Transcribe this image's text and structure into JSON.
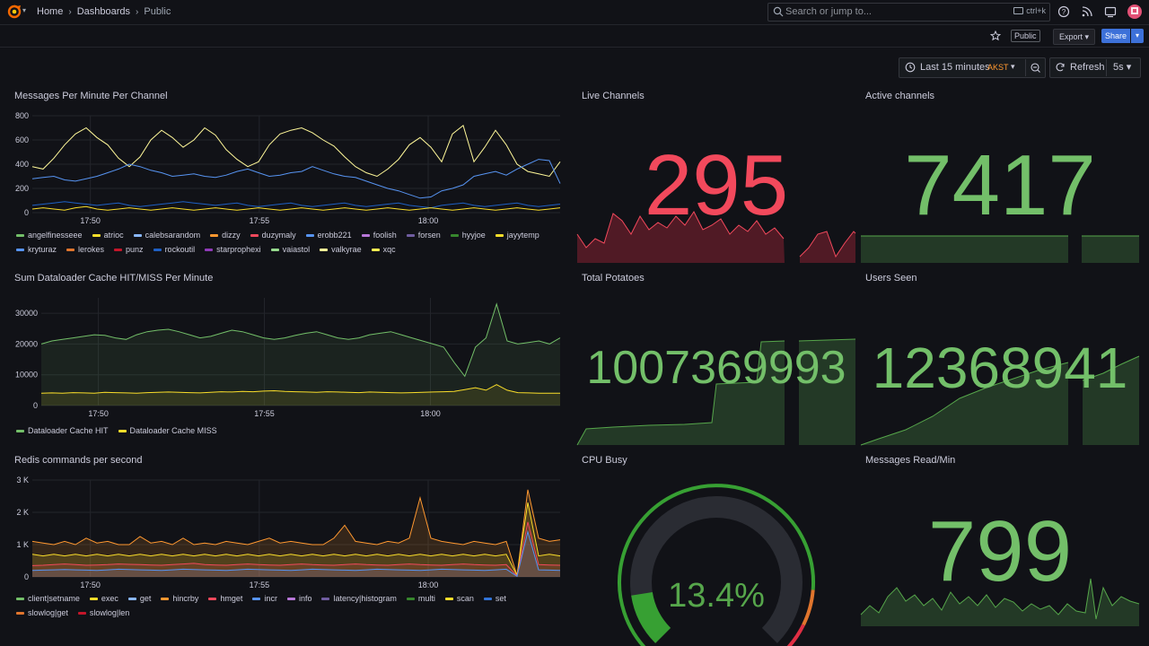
{
  "nav": {
    "breadcrumbs": [
      "Home",
      "Dashboards",
      "Public"
    ],
    "search_placeholder": "Search or jump to...",
    "search_shortcut": "ctrl+k"
  },
  "toolbar": {
    "public_label": "Public",
    "export_label": "Export",
    "share_label": "Share"
  },
  "time": {
    "range_label": "Last 15 minutes",
    "timezone": "AKST",
    "refresh_label": "Refresh",
    "interval": "5s"
  },
  "colors": {
    "green": "#56a64b",
    "red": "#f2495c",
    "yellow": "#fade2a",
    "blue": "#5794f2",
    "orange": "#ff9830",
    "share_blue": "#3d71d9"
  },
  "panels": {
    "messages": {
      "title": "Messages Per Minute Per Channel",
      "legend": [
        {
          "name": "angelfinesseee",
          "color": "#73bf69"
        },
        {
          "name": "atrioc",
          "color": "#fade2a"
        },
        {
          "name": "calebsarandom",
          "color": "#8ab8ff"
        },
        {
          "name": "dizzy",
          "color": "#ff9830"
        },
        {
          "name": "duzymaly",
          "color": "#f2495c"
        },
        {
          "name": "erobb221",
          "color": "#5794f2"
        },
        {
          "name": "foolish",
          "color": "#b877d9"
        },
        {
          "name": "forsen",
          "color": "#705da0"
        },
        {
          "name": "hyyjoe",
          "color": "#37872d"
        },
        {
          "name": "jayytemp",
          "color": "#fade2a"
        },
        {
          "name": "kryturaz",
          "color": "#5794f2"
        },
        {
          "name": "lerokes",
          "color": "#e0752d"
        },
        {
          "name": "punz",
          "color": "#c4162a"
        },
        {
          "name": "rockoutil",
          "color": "#1f60c4"
        },
        {
          "name": "starprophexi",
          "color": "#8f3bb8"
        },
        {
          "name": "vaiastol",
          "color": "#96d98d"
        },
        {
          "name": "valkyrae",
          "color": "#fff899"
        },
        {
          "name": "xqc",
          "color": "#ffee52"
        }
      ]
    },
    "dataloader": {
      "title": "Sum Dataloader Cache HIT/MISS Per Minute",
      "legend": [
        {
          "name": "Dataloader Cache HIT",
          "color": "#73bf69"
        },
        {
          "name": "Dataloader Cache MISS",
          "color": "#fade2a"
        }
      ]
    },
    "redis": {
      "title": "Redis commands per second",
      "legend": [
        {
          "name": "client|setname",
          "color": "#73bf69"
        },
        {
          "name": "exec",
          "color": "#fade2a"
        },
        {
          "name": "get",
          "color": "#8ab8ff"
        },
        {
          "name": "hincrby",
          "color": "#ff9830"
        },
        {
          "name": "hmget",
          "color": "#f2495c"
        },
        {
          "name": "incr",
          "color": "#5794f2"
        },
        {
          "name": "info",
          "color": "#b877d9"
        },
        {
          "name": "latency|histogram",
          "color": "#705da0"
        },
        {
          "name": "multi",
          "color": "#37872d"
        },
        {
          "name": "scan",
          "color": "#fade2a"
        },
        {
          "name": "set",
          "color": "#3274d9"
        },
        {
          "name": "slowlog|get",
          "color": "#e0752d"
        },
        {
          "name": "slowlog|len",
          "color": "#c4162a"
        }
      ]
    },
    "live_channels": {
      "title": "Live Channels",
      "value": "295"
    },
    "active_channels": {
      "title": "Active channels",
      "value": "7417"
    },
    "total_potatoes": {
      "title": "Total Potatoes",
      "value": "1007369993"
    },
    "users_seen": {
      "title": "Users Seen",
      "value": "12368941"
    },
    "cpu_busy": {
      "title": "CPU Busy",
      "value": "13.4%",
      "percent": 13.4
    },
    "messages_read": {
      "title": "Messages Read/Min",
      "value": "799"
    }
  },
  "chart_data": [
    {
      "type": "line",
      "title": "Messages Per Minute Per Channel",
      "x_ticks": [
        "17:50",
        "17:55",
        "18:00"
      ],
      "y_ticks": [
        "0",
        "200",
        "400",
        "600",
        "800"
      ],
      "ylim": [
        0,
        800
      ],
      "series": [
        {
          "name": "valkyrae",
          "color": "#fff899",
          "values": [
            380,
            360,
            450,
            560,
            650,
            700,
            620,
            560,
            450,
            380,
            460,
            600,
            680,
            620,
            540,
            600,
            700,
            640,
            520,
            440,
            380,
            420,
            560,
            650,
            680,
            700,
            660,
            600,
            550,
            460,
            380,
            330,
            300,
            360,
            440,
            560,
            620,
            540,
            420,
            650,
            720,
            420,
            540,
            680,
            560,
            400,
            340,
            320,
            300,
            420
          ]
        },
        {
          "name": "erobb221",
          "color": "#5794f2",
          "values": [
            280,
            290,
            300,
            270,
            260,
            280,
            300,
            330,
            360,
            400,
            380,
            350,
            330,
            300,
            310,
            320,
            300,
            290,
            310,
            340,
            360,
            330,
            300,
            310,
            330,
            340,
            380,
            350,
            320,
            300,
            290,
            260,
            230,
            200,
            180,
            150,
            120,
            130,
            180,
            200,
            230,
            300,
            320,
            340,
            310,
            360,
            400,
            440,
            430,
            240
          ]
        },
        {
          "name": "rockoutil",
          "color": "#1f60c4",
          "values": [
            60,
            70,
            80,
            90,
            80,
            70,
            60,
            70,
            80,
            60,
            50,
            60,
            70,
            80,
            90,
            80,
            70,
            60,
            70,
            80,
            60,
            50,
            60,
            70,
            80,
            60,
            50,
            60,
            70,
            80,
            60,
            50,
            60,
            70,
            80,
            60,
            50,
            40,
            60,
            70,
            80,
            60,
            50,
            60,
            70,
            80,
            60,
            50,
            60,
            70
          ]
        },
        {
          "name": "atrioc",
          "color": "#fade2a",
          "values": [
            30,
            40,
            30,
            20,
            40,
            50,
            30,
            20,
            30,
            40,
            30,
            20,
            30,
            40,
            30,
            20,
            30,
            40,
            30,
            20,
            30,
            40,
            30,
            20,
            30,
            40,
            30,
            20,
            30,
            40,
            30,
            20,
            30,
            40,
            30,
            20,
            30,
            40,
            30,
            20,
            30,
            40,
            30,
            20,
            30,
            40,
            30,
            20,
            30,
            40
          ]
        }
      ]
    },
    {
      "type": "area",
      "title": "Sum Dataloader Cache HIT/MISS Per Minute",
      "x_ticks": [
        "17:50",
        "17:55",
        "18:00"
      ],
      "y_ticks": [
        "0",
        "10000",
        "20000",
        "30000"
      ],
      "ylim": [
        0,
        35000
      ],
      "series": [
        {
          "name": "Dataloader Cache HIT",
          "color": "#73bf69",
          "values": [
            20000,
            21000,
            21500,
            22000,
            22500,
            23000,
            22800,
            22000,
            21500,
            23000,
            24000,
            24500,
            24800,
            24000,
            23000,
            22000,
            22500,
            23500,
            24500,
            24000,
            23000,
            22000,
            21500,
            22000,
            22800,
            23500,
            24000,
            23000,
            22000,
            21500,
            22000,
            23000,
            23500,
            24000,
            23000,
            22000,
            21000,
            20000,
            19000,
            14000,
            9500,
            19000,
            22000,
            33000,
            21000,
            20000,
            20500,
            21000,
            20000,
            22000
          ]
        },
        {
          "name": "Dataloader Cache MISS",
          "color": "#fade2a",
          "values": [
            4000,
            4100,
            4000,
            4200,
            4100,
            4000,
            4300,
            4200,
            4100,
            4000,
            4200,
            4300,
            4400,
            4300,
            4200,
            4100,
            4300,
            4500,
            4400,
            4600,
            4500,
            4700,
            4800,
            4600,
            4500,
            4400,
            4300,
            4500,
            4400,
            4300,
            4200,
            4400,
            4300,
            4200,
            4100,
            4200,
            4300,
            4400,
            4500,
            4600,
            5200,
            5800,
            5000,
            6800,
            5000,
            4200,
            4100,
            4000,
            4000,
            4000
          ]
        }
      ]
    },
    {
      "type": "area",
      "title": "Redis commands per second",
      "x_ticks": [
        "17:50",
        "17:55",
        "18:00"
      ],
      "y_ticks": [
        "0",
        "1 K",
        "2 K",
        "3 K"
      ],
      "ylim": [
        0,
        3000
      ],
      "series": [
        {
          "name": "hincrby",
          "color": "#ff9830",
          "values": [
            1100,
            1050,
            1000,
            1100,
            1000,
            1200,
            1050,
            1100,
            1000,
            1000,
            1250,
            1050,
            1100,
            1000,
            1200,
            1000,
            1050,
            1000,
            1100,
            1050,
            1000,
            1100,
            1200,
            1050,
            1100,
            1050,
            1000,
            1000,
            1200,
            1600,
            1100,
            1050,
            1000,
            1100,
            1050,
            1200,
            2450,
            1200,
            1100,
            1050,
            1000,
            1100,
            1050,
            1000,
            1100,
            50,
            2700,
            1200,
            1100,
            1150
          ]
        },
        {
          "name": "exec",
          "color": "#fade2a",
          "values": [
            700,
            650,
            700,
            650,
            700,
            650,
            700,
            650,
            700,
            650,
            700,
            650,
            700,
            650,
            700,
            650,
            700,
            650,
            700,
            650,
            700,
            650,
            700,
            650,
            700,
            650,
            700,
            650,
            700,
            650,
            700,
            650,
            700,
            650,
            700,
            650,
            700,
            650,
            700,
            650,
            700,
            650,
            700,
            650,
            700,
            50,
            2300,
            650,
            700,
            650
          ]
        },
        {
          "name": "hmget",
          "color": "#f2495c",
          "values": [
            350,
            360,
            380,
            400,
            380,
            360,
            370,
            380,
            400,
            390,
            380,
            370,
            360,
            380,
            400,
            420,
            380,
            370,
            360,
            380,
            400,
            380,
            370,
            360,
            380,
            400,
            380,
            370,
            360,
            380,
            400,
            380,
            370,
            360,
            380,
            400,
            380,
            370,
            360,
            380,
            400,
            380,
            370,
            360,
            380,
            30,
            1700,
            380,
            370,
            360
          ]
        },
        {
          "name": "incr",
          "color": "#5794f2",
          "values": [
            200,
            210,
            220,
            230,
            220,
            210,
            200,
            220,
            240,
            230,
            220,
            210,
            200,
            220,
            240,
            230,
            220,
            210,
            200,
            220,
            240,
            230,
            220,
            210,
            200,
            220,
            240,
            230,
            220,
            210,
            200,
            220,
            240,
            230,
            220,
            210,
            200,
            220,
            240,
            230,
            220,
            210,
            200,
            220,
            240,
            20,
            1400,
            220,
            210,
            200
          ]
        }
      ]
    }
  ]
}
